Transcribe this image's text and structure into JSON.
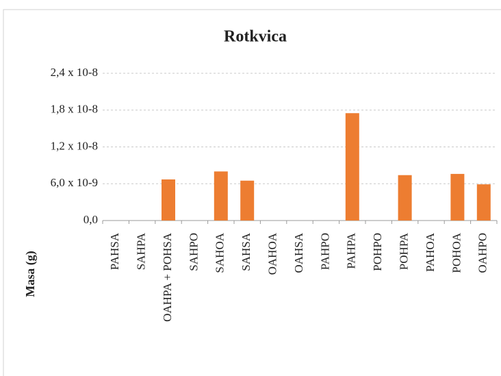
{
  "chart_data": {
    "type": "bar",
    "title": "Rotkvica",
    "y_label": "Masa (g)",
    "categories": [
      "PAHSA",
      "SAHPA",
      "OAHPA + POHSA",
      "SAHPO",
      "SAHOA",
      "SAHSA",
      "OAHOA",
      "OAHSA",
      "PAHPO",
      "PAHPA",
      "POHPO",
      "POHPA",
      "PAHOA",
      "POHOA",
      "OAHPO"
    ],
    "values": [
      0,
      0,
      6.7e-09,
      0,
      8e-09,
      6.5e-09,
      0,
      0,
      0,
      1.75e-08,
      0,
      7.4e-09,
      0,
      7.6e-09,
      5.9e-09
    ],
    "color": "#ed7d31",
    "ylim": [
      0,
      2.4e-08
    ],
    "yticks": [
      {
        "value": 0,
        "label": "0,0"
      },
      {
        "value": 6e-09,
        "label": "6,0 x 10-9"
      },
      {
        "value": 1.2e-08,
        "label": "1,2 x 10-8"
      },
      {
        "value": 1.8e-08,
        "label": "1,8 x 10-8"
      },
      {
        "value": 2.4e-08,
        "label": "2,4 x 10-8"
      }
    ],
    "grid": true
  }
}
